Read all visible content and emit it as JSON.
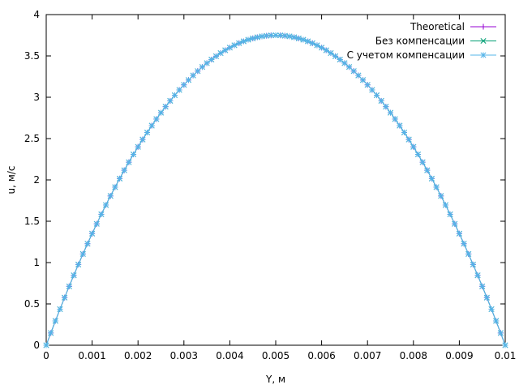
{
  "chart_data": {
    "type": "line",
    "title": "",
    "xlabel": "Y, м",
    "ylabel": "u, м/с",
    "xlim": [
      0,
      0.01
    ],
    "ylim": [
      0,
      4
    ],
    "x_ticks": [
      "0",
      "0.001",
      "0.002",
      "0.003",
      "0.004",
      "0.005",
      "0.006",
      "0.007",
      "0.008",
      "0.009",
      "0.01"
    ],
    "y_ticks": [
      "0",
      "0.5",
      "1",
      "1.5",
      "2",
      "2.5",
      "3",
      "3.5",
      "4"
    ],
    "grid": false,
    "legend_position": "top-right",
    "profile": "parabolic u = u_max * 4 * (Y/0.01) * (1 - Y/0.01), sampled at 101 points",
    "u_max": 3.75,
    "sample_count": 101,
    "x": [
      0,
      0.001,
      0.002,
      0.003,
      0.004,
      0.005,
      0.006,
      0.007,
      0.008,
      0.009,
      0.01
    ],
    "series": [
      {
        "name": "Theoretical",
        "color": "#9400d3",
        "marker": "plus",
        "values": [
          0,
          1.35,
          2.4,
          3.15,
          3.6,
          3.75,
          3.6,
          3.15,
          2.4,
          1.35,
          0
        ]
      },
      {
        "name": "Без компенсации",
        "color": "#009e73",
        "marker": "cross",
        "values": [
          0,
          1.35,
          2.4,
          3.15,
          3.6,
          3.75,
          3.6,
          3.15,
          2.4,
          1.35,
          0
        ]
      },
      {
        "name": "С учетом компенсации",
        "color": "#56b4e9",
        "marker": "star",
        "values": [
          0,
          1.35,
          2.4,
          3.15,
          3.6,
          3.75,
          3.6,
          3.15,
          2.4,
          1.35,
          0
        ]
      }
    ]
  }
}
